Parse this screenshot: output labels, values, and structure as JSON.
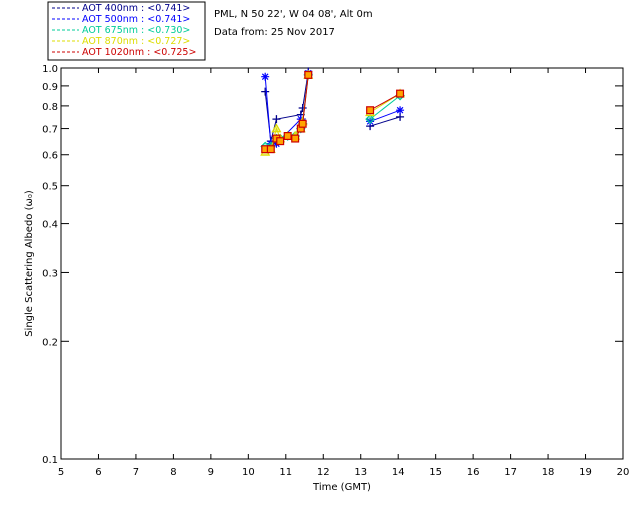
{
  "chart_data": {
    "type": "scatter",
    "title_lines": [
      "PML, N 50 22', W 04 08', Alt 0m",
      "Data from: 25 Nov 2017"
    ],
    "xlabel": "Time (GMT)",
    "ylabel": "Single Scattering Albedo (ω₀)",
    "xlim": [
      5,
      20
    ],
    "ylim": [
      0.1,
      1.0
    ],
    "yscale": "log",
    "x_ticks": [
      5,
      6,
      7,
      8,
      9,
      10,
      11,
      12,
      13,
      14,
      15,
      16,
      17,
      18,
      19,
      20
    ],
    "y_ticks": [
      0.1,
      0.2,
      0.3,
      0.4,
      0.5,
      0.6,
      0.7,
      0.8,
      0.9,
      1.0
    ],
    "y_tick_labels": [
      "0.1",
      "0.2",
      "0.3",
      "0.4",
      "0.5",
      "0.6",
      "0.7",
      "0.8",
      "0.9",
      "1.0"
    ],
    "grid": false,
    "legend_position": "top-left, outside plot",
    "series": [
      {
        "name": "AOT  400nm : <0.741>",
        "color": "#00008b",
        "marker": "plus",
        "x": [
          10.45,
          10.6,
          10.75,
          11.4,
          11.45,
          11.6,
          13.25,
          14.05
        ],
        "y": [
          0.87,
          0.65,
          0.74,
          0.76,
          0.79,
          0.98,
          0.71,
          0.75
        ]
      },
      {
        "name": "AOT  500nm : <0.741>",
        "color": "#0000ff",
        "marker": "asterisk",
        "x": [
          10.45,
          10.6,
          10.75,
          11.4,
          11.45,
          11.6,
          13.25,
          14.05
        ],
        "y": [
          0.95,
          0.64,
          0.64,
          0.74,
          0.73,
          0.97,
          0.73,
          0.78
        ]
      },
      {
        "name": "AOT  675nm : <0.730>",
        "color": "#00cc99",
        "marker": "diamond",
        "x": [
          10.45,
          10.6,
          10.75,
          10.85,
          11.05,
          11.25,
          11.4,
          11.45,
          11.6,
          13.25,
          14.05
        ],
        "y": [
          0.63,
          0.63,
          0.66,
          0.66,
          0.67,
          0.67,
          0.7,
          0.72,
          0.96,
          0.74,
          0.85
        ]
      },
      {
        "name": "AOT  870nm : <0.727>",
        "color": "#dddd00",
        "marker": "triangle",
        "x": [
          10.45,
          10.6,
          10.75,
          10.85,
          11.05,
          11.25,
          11.4,
          11.45,
          11.6,
          13.25,
          14.05
        ],
        "y": [
          0.61,
          0.62,
          0.7,
          0.66,
          0.67,
          0.67,
          0.7,
          0.73,
          0.96,
          0.77,
          0.86
        ]
      },
      {
        "name": "AOT 1020nm : <0.725>",
        "color": "#cc0000",
        "marker": "square",
        "x": [
          10.45,
          10.6,
          10.75,
          10.85,
          11.05,
          11.25,
          11.4,
          11.45,
          11.6,
          13.25,
          14.05
        ],
        "y": [
          0.62,
          0.62,
          0.66,
          0.65,
          0.67,
          0.66,
          0.7,
          0.72,
          0.96,
          0.78,
          0.86
        ]
      }
    ]
  }
}
